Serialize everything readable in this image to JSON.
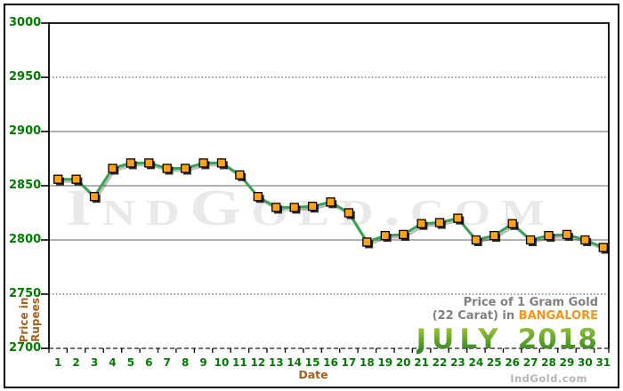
{
  "branding": {
    "watermark": "IndGold.com",
    "footer": "IndGold.com"
  },
  "title_block": {
    "line1": "Price of 1 Gram Gold",
    "line2_prefix": "(22 Carat) in ",
    "line2_city": "BANGALORE",
    "month": "JULY",
    "year": "2018"
  },
  "axes": {
    "y_title_line1": "Price in",
    "y_title_line2": "Rupees",
    "x_title": "Date"
  },
  "colors": {
    "axis_label_green": "#007c00",
    "axis_title_brown": "#a4611c",
    "legend_gray": "#808080",
    "city_orange": "#f7941d",
    "month_green_top": "#aed13a",
    "month_green_bottom": "#1e7a1e",
    "line_green": "#3ba156",
    "marker_orange": "#ffa419",
    "solid_grid_gray": "#979797",
    "watermark_gray": "#e9e9e9"
  },
  "chart_data": {
    "type": "line",
    "title": "Price of 1 Gram Gold (22 Carat) in BANGALORE - JULY 2018",
    "xlabel": "Date",
    "ylabel": "Price in Rupees",
    "categories": [
      1,
      2,
      3,
      4,
      5,
      6,
      7,
      8,
      9,
      10,
      11,
      12,
      13,
      14,
      15,
      16,
      17,
      18,
      19,
      20,
      21,
      22,
      23,
      24,
      25,
      26,
      27,
      28,
      29,
      30,
      31
    ],
    "series": [
      {
        "name": "Gold price per 1 gram, 22 carat (Rupees)",
        "values": [
          2856,
          2856,
          2840,
          2866,
          2871,
          2871,
          2866,
          2866,
          2871,
          2871,
          2860,
          2840,
          2830,
          2830,
          2831,
          2835,
          2825,
          2798,
          2804,
          2805,
          2815,
          2816,
          2820,
          2800,
          2804,
          2815,
          2800,
          2804,
          2805,
          2800,
          2793
        ]
      }
    ],
    "ylim": [
      2700,
      3000
    ],
    "y_ticks": [
      3000,
      2950,
      2900,
      2850,
      2800,
      2750,
      2700
    ],
    "solid_gridlines": [
      2900,
      2850,
      2800
    ],
    "dotted_gridlines": [
      2950,
      2750
    ],
    "grid": true,
    "legend_position": "none",
    "line_color": "#3ba156",
    "marker_color": "#ffa419"
  }
}
